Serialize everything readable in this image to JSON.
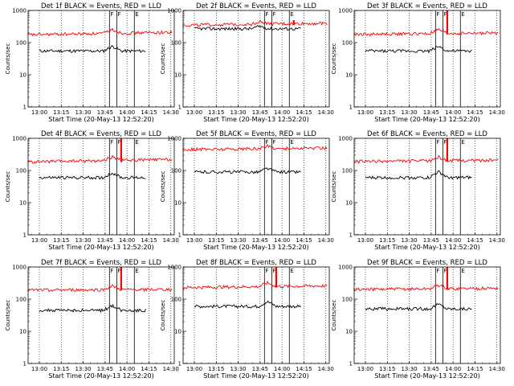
{
  "chart_data": [
    {
      "type": "line",
      "title": "Det 1f BLACK = Events, RED = LLD",
      "ylabel": "Counts/sec",
      "xlabel": "Start Time (20-May-13 12:52:20)",
      "xlim": [
        "12:52:20",
        "14:32:20"
      ],
      "ylim": [
        1,
        1000
      ],
      "y_scale": "log",
      "x_ticks": [
        "13:00",
        "13:15",
        "13:30",
        "13:45",
        "14:00",
        "14:15",
        "14:30"
      ],
      "y_ticks": [
        "1",
        "10",
        "100",
        "1000"
      ],
      "grid": "vertical-dotted",
      "markers": [
        {
          "label": "F",
          "time": "13:48"
        },
        {
          "label": "F",
          "time": "13:53"
        },
        {
          "label": "E",
          "time": "14:05"
        }
      ],
      "spikes": [],
      "series": [
        {
          "name": "Events",
          "color": "#000000",
          "start": "13:00",
          "end": "14:13",
          "base": 55,
          "bump_at": "13:50",
          "bump": 1.4
        },
        {
          "name": "LLD",
          "color": "#ff0000",
          "start": "12:52",
          "end": "14:31",
          "base": 175,
          "end_level": 210,
          "bump_at": "13:50",
          "bump": 1.3
        }
      ]
    },
    {
      "type": "line",
      "title": "Det 2f BLACK = Events, RED = LLD",
      "ylabel": "Counts/sec",
      "xlabel": "Start Time (20-May-13 12:52:20)",
      "xlim": [
        "12:52:20",
        "14:32:20"
      ],
      "ylim": [
        1,
        1000
      ],
      "y_scale": "log",
      "x_ticks": [
        "13:00",
        "13:15",
        "13:30",
        "13:45",
        "14:00",
        "14:15",
        "14:30"
      ],
      "y_ticks": [
        "1",
        "10",
        "100",
        "1000"
      ],
      "grid": "vertical-dotted",
      "markers": [
        {
          "label": "F",
          "time": "13:48"
        },
        {
          "label": "F",
          "time": "13:53"
        },
        {
          "label": "E",
          "time": "14:05"
        }
      ],
      "spikes": [
        {
          "time": "14:08",
          "top": 500
        }
      ],
      "series": [
        {
          "name": "Events",
          "color": "#000000",
          "start": "13:00",
          "end": "14:13",
          "base": 270,
          "bump_at": "13:45",
          "bump": 1.2
        },
        {
          "name": "LLD",
          "color": "#ff0000",
          "start": "12:52",
          "end": "14:31",
          "base": 350,
          "end_level": 400,
          "bump_at": "13:45",
          "bump": 1.2
        }
      ]
    },
    {
      "type": "line",
      "title": "Det 3f BLACK = Events, RED = LLD",
      "ylabel": "Counts/sec",
      "xlabel": "Start Time (20-May-13 12:52:20)",
      "xlim": [
        "12:52:20",
        "14:32:20"
      ],
      "ylim": [
        1,
        1000
      ],
      "y_scale": "log",
      "x_ticks": [
        "13:00",
        "13:15",
        "13:30",
        "13:45",
        "14:00",
        "14:15",
        "14:30"
      ],
      "y_ticks": [
        "1",
        "10",
        "100",
        "1000"
      ],
      "grid": "vertical-dotted",
      "markers": [
        {
          "label": "F",
          "time": "13:48"
        },
        {
          "label": "F",
          "time": "13:53"
        },
        {
          "label": "E",
          "time": "14:05"
        }
      ],
      "spikes": [
        {
          "time": "13:56",
          "top": 1000
        }
      ],
      "series": [
        {
          "name": "Events",
          "color": "#000000",
          "start": "13:00",
          "end": "14:13",
          "base": 55,
          "bump_at": "13:50",
          "bump": 1.4
        },
        {
          "name": "LLD",
          "color": "#ff0000",
          "start": "12:52",
          "end": "14:31",
          "base": 180,
          "end_level": 200,
          "bump_at": "13:50",
          "bump": 1.3
        }
      ]
    },
    {
      "type": "line",
      "title": "Det 4f BLACK = Events, RED = LLD",
      "ylabel": "Counts/sec",
      "xlabel": "Start Time (20-May-13 12:52:20)",
      "xlim": [
        "12:52:20",
        "14:32:20"
      ],
      "ylim": [
        1,
        1000
      ],
      "y_scale": "log",
      "x_ticks": [
        "13:00",
        "13:15",
        "13:30",
        "13:45",
        "14:00",
        "14:15",
        "14:30"
      ],
      "y_ticks": [
        "1",
        "10",
        "100",
        "1000"
      ],
      "grid": "vertical-dotted",
      "markers": [
        {
          "label": "F",
          "time": "13:48"
        },
        {
          "label": "F",
          "time": "13:53"
        },
        {
          "label": "E",
          "time": "14:05"
        }
      ],
      "spikes": [
        {
          "time": "13:56",
          "top": 1000
        }
      ],
      "series": [
        {
          "name": "Events",
          "color": "#000000",
          "start": "13:00",
          "end": "14:13",
          "base": 60,
          "bump_at": "13:50",
          "bump": 1.4
        },
        {
          "name": "LLD",
          "color": "#ff0000",
          "start": "12:52",
          "end": "14:31",
          "base": 185,
          "end_level": 220,
          "bump_at": "13:50",
          "bump": 1.3
        }
      ]
    },
    {
      "type": "line",
      "title": "Det 5f BLACK = Events, RED = LLD",
      "ylabel": "Counts/sec",
      "xlabel": "Start Time (20-May-13 12:52:20)",
      "xlim": [
        "12:52:20",
        "14:32:20"
      ],
      "ylim": [
        1,
        1000
      ],
      "y_scale": "log",
      "x_ticks": [
        "13:00",
        "13:15",
        "13:30",
        "13:45",
        "14:00",
        "14:15",
        "14:30"
      ],
      "y_ticks": [
        "1",
        "10",
        "100",
        "1000"
      ],
      "grid": "vertical-dotted",
      "markers": [
        {
          "label": "F",
          "time": "13:48"
        },
        {
          "label": "F",
          "time": "13:53"
        },
        {
          "label": "E",
          "time": "14:05"
        }
      ],
      "spikes": [],
      "series": [
        {
          "name": "Events",
          "color": "#000000",
          "start": "13:00",
          "end": "14:13",
          "base": 90,
          "bump_at": "13:50",
          "bump": 1.3
        },
        {
          "name": "LLD",
          "color": "#ff0000",
          "start": "12:52",
          "end": "14:31",
          "base": 450,
          "end_level": 500,
          "bump_at": "13:50",
          "bump": 1.2
        }
      ]
    },
    {
      "type": "line",
      "title": "Det 6f BLACK = Events, RED = LLD",
      "ylabel": "Counts/sec",
      "xlabel": "Start Time (20-May-13 12:52:20)",
      "xlim": [
        "12:52:20",
        "14:32:20"
      ],
      "ylim": [
        1,
        1000
      ],
      "y_scale": "log",
      "x_ticks": [
        "13:00",
        "13:15",
        "13:30",
        "13:45",
        "14:00",
        "14:15",
        "14:30"
      ],
      "y_ticks": [
        "1",
        "10",
        "100",
        "1000"
      ],
      "grid": "vertical-dotted",
      "markers": [
        {
          "label": "F",
          "time": "13:48"
        },
        {
          "label": "F",
          "time": "13:53"
        },
        {
          "label": "E",
          "time": "14:05"
        }
      ],
      "spikes": [
        {
          "time": "13:56",
          "top": 1000
        }
      ],
      "series": [
        {
          "name": "Events",
          "color": "#000000",
          "start": "13:00",
          "end": "14:13",
          "base": 60,
          "bump_at": "13:50",
          "bump": 1.5
        },
        {
          "name": "LLD",
          "color": "#ff0000",
          "start": "12:52",
          "end": "14:31",
          "base": 190,
          "end_level": 210,
          "bump_at": "13:50",
          "bump": 1.3
        }
      ]
    },
    {
      "type": "line",
      "title": "Det 7f BLACK = Events, RED = LLD",
      "ylabel": "Counts/sec",
      "xlabel": "Start Time (20-May-13 12:52:20)",
      "xlim": [
        "12:52:20",
        "14:32:20"
      ],
      "ylim": [
        1,
        1000
      ],
      "y_scale": "log",
      "x_ticks": [
        "13:00",
        "13:15",
        "13:30",
        "13:45",
        "14:00",
        "14:15",
        "14:30"
      ],
      "y_ticks": [
        "1",
        "10",
        "100",
        "1000"
      ],
      "grid": "vertical-dotted",
      "markers": [
        {
          "label": "F",
          "time": "13:48"
        },
        {
          "label": "F",
          "time": "13:53"
        },
        {
          "label": "E",
          "time": "14:05"
        }
      ],
      "spikes": [
        {
          "time": "13:56",
          "top": 1000
        }
      ],
      "series": [
        {
          "name": "Events",
          "color": "#000000",
          "start": "13:00",
          "end": "14:13",
          "base": 45,
          "bump_at": "13:50",
          "bump": 1.4
        },
        {
          "name": "LLD",
          "color": "#ff0000",
          "start": "12:52",
          "end": "14:31",
          "base": 190,
          "end_level": 200,
          "bump_at": "13:50",
          "bump": 1.3
        }
      ]
    },
    {
      "type": "line",
      "title": "Det 8f BLACK = Events, RED = LLD",
      "ylabel": "Counts/sec",
      "xlabel": "Start Time (20-May-13 12:52:20)",
      "xlim": [
        "12:52:20",
        "14:32:20"
      ],
      "ylim": [
        1,
        1000
      ],
      "y_scale": "log",
      "x_ticks": [
        "13:00",
        "13:15",
        "13:30",
        "13:45",
        "14:00",
        "14:15",
        "14:30"
      ],
      "y_ticks": [
        "1",
        "10",
        "100",
        "1000"
      ],
      "grid": "vertical-dotted",
      "markers": [
        {
          "label": "F",
          "time": "13:48"
        },
        {
          "label": "F",
          "time": "13:53"
        },
        {
          "label": "E",
          "time": "14:05"
        }
      ],
      "spikes": [
        {
          "time": "13:56",
          "top": 1000
        }
      ],
      "series": [
        {
          "name": "Events",
          "color": "#000000",
          "start": "13:00",
          "end": "14:13",
          "base": 60,
          "bump_at": "13:50",
          "bump": 1.4
        },
        {
          "name": "LLD",
          "color": "#ff0000",
          "start": "12:52",
          "end": "14:31",
          "base": 230,
          "end_level": 260,
          "bump_at": "13:50",
          "bump": 1.3
        }
      ]
    },
    {
      "type": "line",
      "title": "Det 9f BLACK = Events, RED = LLD",
      "ylabel": "Counts/sec",
      "xlabel": "Start Time (20-May-13 12:52:20)",
      "xlim": [
        "12:52:20",
        "14:32:20"
      ],
      "ylim": [
        1,
        1000
      ],
      "y_scale": "log",
      "x_ticks": [
        "13:00",
        "13:15",
        "13:30",
        "13:45",
        "14:00",
        "14:15",
        "14:30"
      ],
      "y_ticks": [
        "1",
        "10",
        "100",
        "1000"
      ],
      "grid": "vertical-dotted",
      "markers": [
        {
          "label": "F",
          "time": "13:48"
        },
        {
          "label": "F",
          "time": "13:53"
        },
        {
          "label": "E",
          "time": "14:05"
        }
      ],
      "spikes": [
        {
          "time": "13:56",
          "top": 1000
        }
      ],
      "series": [
        {
          "name": "Events",
          "color": "#000000",
          "start": "13:00",
          "end": "14:13",
          "base": 50,
          "bump_at": "13:50",
          "bump": 1.4
        },
        {
          "name": "LLD",
          "color": "#ff0000",
          "start": "12:52",
          "end": "14:31",
          "base": 200,
          "end_level": 220,
          "bump_at": "13:50",
          "bump": 1.3
        }
      ]
    }
  ]
}
